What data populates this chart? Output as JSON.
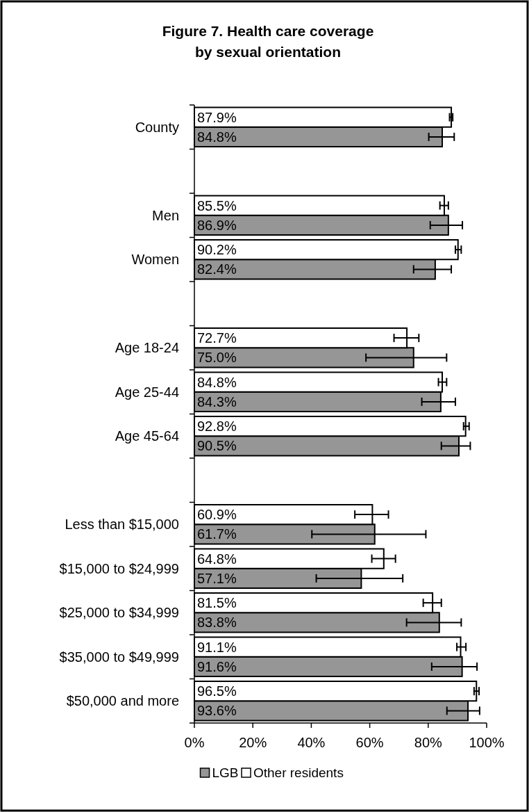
{
  "chart_data": {
    "type": "bar",
    "orientation": "horizontal",
    "title": "Figure 7. Health care coverage\nby sexual orientation",
    "categories": [
      "County",
      null,
      "Men",
      "Women",
      null,
      "Age 18-24",
      "Age 25-44",
      "Age 45-64",
      null,
      "Less than $15,000",
      "$15,000 to $24,999",
      "$25,000 to $34,999",
      "$35,000 to $49,999",
      "$50,000 and more"
    ],
    "series": [
      {
        "name": "LGB",
        "color": "#969696",
        "values": [
          84.8,
          null,
          86.9,
          82.4,
          null,
          75.0,
          84.3,
          90.5,
          null,
          61.7,
          57.1,
          83.8,
          91.6,
          93.6
        ],
        "value_labels": [
          "84.8%",
          null,
          "86.9%",
          "82.4%",
          null,
          "75.0%",
          "84.3%",
          "90.5%",
          null,
          "61.7%",
          "57.1%",
          "83.8%",
          "91.6%",
          "93.6%"
        ],
        "errors": [
          [
            80.2,
            88.9
          ],
          null,
          [
            80.7,
            91.7
          ],
          [
            75.0,
            87.9
          ],
          null,
          [
            58.7,
            86.3
          ],
          [
            77.8,
            89.3
          ],
          [
            84.5,
            94.4
          ],
          null,
          [
            40.2,
            79.2
          ],
          [
            41.7,
            71.3
          ],
          [
            72.6,
            91.3
          ],
          [
            81.2,
            96.7
          ],
          [
            86.4,
            97.6
          ]
        ]
      },
      {
        "name": "Other residents",
        "color": "#ffffff",
        "values": [
          87.9,
          null,
          85.5,
          90.2,
          null,
          72.7,
          84.8,
          92.8,
          null,
          60.9,
          64.8,
          81.5,
          91.1,
          96.5
        ],
        "value_labels": [
          "87.9%",
          null,
          "85.5%",
          "90.2%",
          null,
          "72.7%",
          "84.8%",
          "92.8%",
          null,
          "60.9%",
          "64.8%",
          "81.5%",
          "91.1%",
          "96.5%"
        ],
        "errors": [
          [
            87.3,
            88.4
          ],
          null,
          [
            84.0,
            86.9
          ],
          [
            89.3,
            91.3
          ],
          null,
          [
            68.3,
            76.8
          ],
          [
            83.5,
            86.3
          ],
          [
            92.1,
            94.0
          ],
          null,
          [
            54.9,
            66.4
          ],
          [
            60.7,
            68.8
          ],
          [
            78.3,
            84.5
          ],
          [
            89.8,
            92.9
          ],
          [
            95.7,
            97.4
          ]
        ]
      }
    ],
    "xlim": [
      0,
      100
    ],
    "xticks": [
      {
        "value": 0,
        "label": "0%"
      },
      {
        "value": 20,
        "label": "20%"
      },
      {
        "value": 40,
        "label": "40%"
      },
      {
        "value": 60,
        "label": "60%"
      },
      {
        "value": 80,
        "label": "80%"
      },
      {
        "value": 100,
        "label": "100%"
      }
    ],
    "grid": false,
    "legend": "bottom"
  }
}
